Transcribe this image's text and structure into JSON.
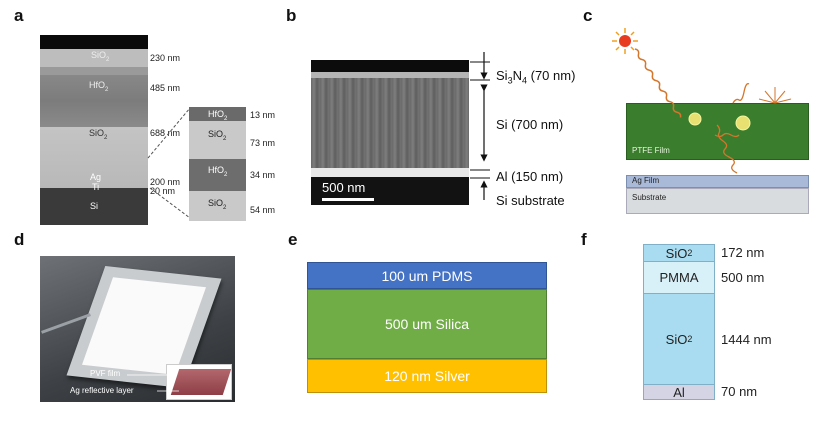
{
  "panels": {
    "a": {
      "label": "a",
      "layers": [
        {
          "name": "SiO2",
          "thickness": "230 nm"
        },
        {
          "name": "HfO2",
          "thickness": "485 nm"
        },
        {
          "name": "SiO2",
          "thickness": "688 nm"
        },
        {
          "name": "Ag",
          "thickness": "200 nm"
        },
        {
          "name": "Ti",
          "thickness": "20 nm"
        },
        {
          "name": "Si",
          "thickness": ""
        }
      ],
      "zoom_layers": [
        {
          "name": "HfO2",
          "thickness": "13 nm"
        },
        {
          "name": "SiO2",
          "thickness": "73 nm"
        },
        {
          "name": "HfO2",
          "thickness": "34 nm"
        },
        {
          "name": "SiO2",
          "thickness": "54 nm"
        }
      ]
    },
    "b": {
      "label": "b",
      "scale_bar": "500 nm",
      "layers": [
        {
          "name": "Si3N4",
          "base": "Si",
          "sub": "3",
          "mid": "N",
          "sub2": "4",
          "thickness": "(70 nm)"
        },
        {
          "name": "Si (700 nm)"
        },
        {
          "name": "Al (150 nm)"
        },
        {
          "name": "Si substrate"
        }
      ]
    },
    "c": {
      "label": "c",
      "film": "PTFE Film",
      "ag": "Ag Film",
      "substrate": "Substrate",
      "colors": {
        "ptfe": "#3a7d2c",
        "ag": "#a9b9d8",
        "substrate": "#d9dcdf",
        "ray": "#d4762c",
        "sun": "#f0a020"
      }
    },
    "d": {
      "label": "d",
      "inset_top": "PVF film",
      "inset_bottom": "Ag reflective layer"
    },
    "e": {
      "label": "e",
      "layers": [
        {
          "text": "100 um PDMS",
          "color": "#4472c4"
        },
        {
          "text": "500 um Silica",
          "color": "#70ad47"
        },
        {
          "text": "120 nm Silver",
          "color": "#ffc000"
        }
      ]
    },
    "f": {
      "label": "f",
      "layers": [
        {
          "name": "SiO2",
          "base": "SiO",
          "sub": "2",
          "thickness": "172 nm",
          "color": "#a9dcf0"
        },
        {
          "name": "PMMA",
          "thickness": "500 nm",
          "color": "#d8f0f8"
        },
        {
          "name": "SiO2",
          "base": "SiO",
          "sub": "2",
          "thickness": "1444 nm",
          "color": "#a9dcf0"
        },
        {
          "name": "Al",
          "thickness": "70 nm",
          "color": "#d4d4e4"
        }
      ]
    }
  }
}
